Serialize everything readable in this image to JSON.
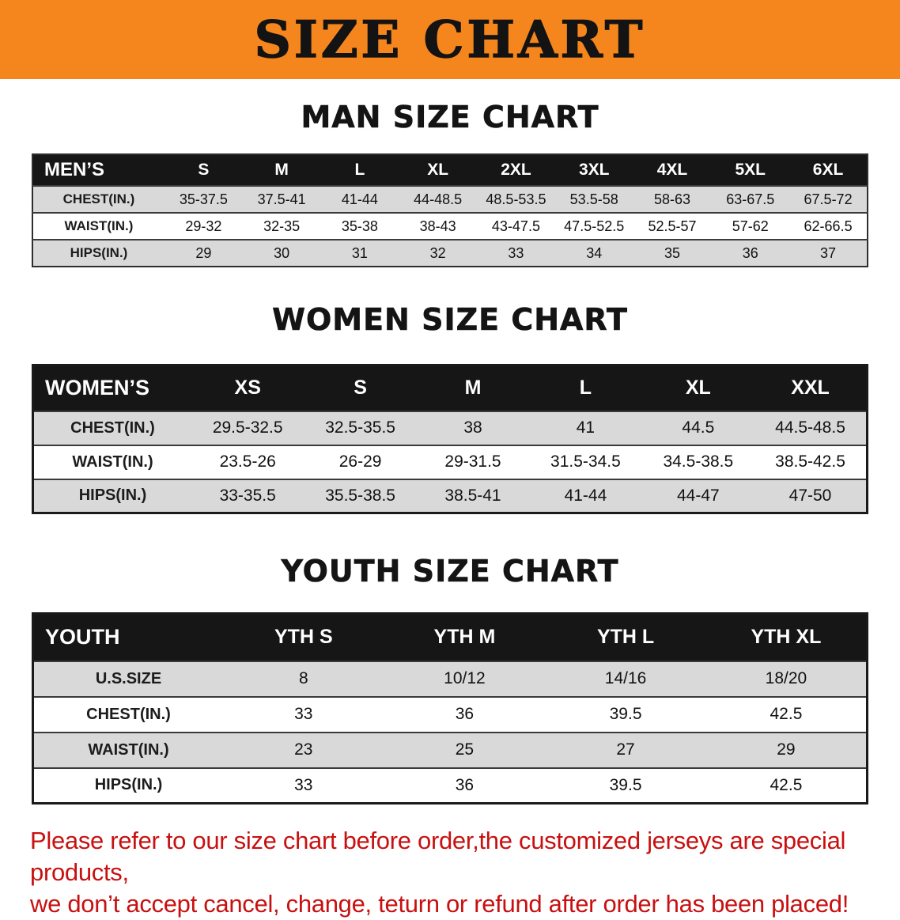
{
  "banner": {
    "title": "SIZE CHART",
    "bg_color": "#F5861D",
    "text_color": "#131313"
  },
  "sections": [
    {
      "heading": "MAN SIZE CHART",
      "table": {
        "corner": "MEN’S",
        "columns": [
          "S",
          "M",
          "L",
          "XL",
          "2XL",
          "3XL",
          "4XL",
          "5XL",
          "6XL"
        ],
        "rows": [
          {
            "label": "CHEST(IN.)",
            "values": [
              "35-37.5",
              "37.5-41",
              "41-44",
              "44-48.5",
              "48.5-53.5",
              "53.5-58",
              "58-63",
              "63-67.5",
              "67.5-72"
            ]
          },
          {
            "label": "WAIST(IN.)",
            "values": [
              "29-32",
              "32-35",
              "35-38",
              "38-43",
              "43-47.5",
              "47.5-52.5",
              "52.5-57",
              "57-62",
              "62-66.5"
            ]
          },
          {
            "label": "HIPS(IN.)",
            "values": [
              "29",
              "30",
              "31",
              "32",
              "33",
              "34",
              "35",
              "36",
              "37"
            ]
          }
        ]
      }
    },
    {
      "heading": "WOMEN SIZE CHART",
      "table": {
        "corner": "WOMEN’S",
        "columns": [
          "XS",
          "S",
          "M",
          "L",
          "XL",
          "XXL"
        ],
        "rows": [
          {
            "label": "CHEST(IN.)",
            "values": [
              "29.5-32.5",
              "32.5-35.5",
              "38",
              "41",
              "44.5",
              "44.5-48.5"
            ]
          },
          {
            "label": "WAIST(IN.)",
            "values": [
              "23.5-26",
              "26-29",
              "29-31.5",
              "31.5-34.5",
              "34.5-38.5",
              "38.5-42.5"
            ]
          },
          {
            "label": "HIPS(IN.)",
            "values": [
              "33-35.5",
              "35.5-38.5",
              "38.5-41",
              "41-44",
              "44-47",
              "47-50"
            ]
          }
        ]
      }
    },
    {
      "heading": "YOUTH SIZE CHART",
      "table": {
        "corner": "YOUTH",
        "columns": [
          "YTH S",
          "YTH M",
          "YTH L",
          "YTH XL"
        ],
        "rows": [
          {
            "label": "U.S.SIZE",
            "values": [
              "8",
              "10/12",
              "14/16",
              "18/20"
            ]
          },
          {
            "label": "CHEST(IN.)",
            "values": [
              "33",
              "36",
              "39.5",
              "42.5"
            ]
          },
          {
            "label": "WAIST(IN.)",
            "values": [
              "23",
              "25",
              "27",
              "29"
            ]
          },
          {
            "label": "HIPS(IN.)",
            "values": [
              "33",
              "36",
              "39.5",
              "42.5"
            ]
          }
        ]
      }
    }
  ],
  "footer": {
    "line1": "Please refer to our size chart before order,the customized jerseys are special products,",
    "line2": "we don’t accept cancel, change, teturn or refund after order has been placed!",
    "text_color": "#c81010"
  }
}
